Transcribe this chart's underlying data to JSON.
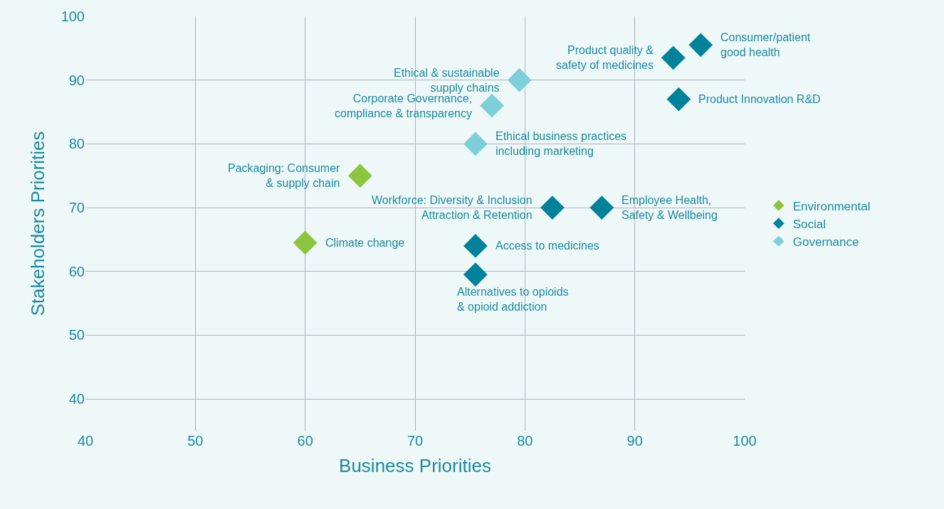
{
  "chart_data": {
    "type": "scatter",
    "xlabel": "Business Priorities",
    "ylabel": "Stakeholders Priorities",
    "xlim": [
      40,
      100
    ],
    "ylim": [
      35,
      100
    ],
    "xticks": [
      40,
      50,
      60,
      70,
      80,
      90,
      100
    ],
    "yticks": [
      40,
      50,
      60,
      70,
      80,
      90,
      100
    ],
    "grid": true,
    "legend": "right",
    "marker": "diamond",
    "series": [
      {
        "name": "Environmental",
        "color": "#8cc63f",
        "x": [
          65,
          60
        ],
        "values": [
          75,
          64.5
        ]
      },
      {
        "name": "Social",
        "color": "#00829b",
        "x": [
          93.5,
          96,
          94,
          82.5,
          87,
          75.5,
          75.5
        ],
        "values": [
          93.5,
          95.5,
          87,
          70,
          70,
          64,
          59.5
        ]
      },
      {
        "name": "Governance",
        "color": "#7dd0da",
        "x": [
          79.5,
          77,
          75.5
        ],
        "values": [
          90,
          86,
          80
        ]
      }
    ],
    "annotations": [
      {
        "text": "Packaging: Consumer\n& supply chain",
        "x": 65,
        "y": 75
      },
      {
        "text": "Climate change",
        "x": 60,
        "y": 64.5
      },
      {
        "text": "Product quality &\nsafety of medicines",
        "x": 93.5,
        "y": 93.5
      },
      {
        "text": "Consumer/patient\ngood health",
        "x": 96,
        "y": 95.5
      },
      {
        "text": "Product Innovation R&D",
        "x": 94,
        "y": 87
      },
      {
        "text": "Workforce: Diversity & Inclusion\nAttraction & Retention",
        "x": 82.5,
        "y": 70
      },
      {
        "text": "Employee Health,\nSafety & Wellbeing",
        "x": 87,
        "y": 70
      },
      {
        "text": "Access to medicines",
        "x": 75.5,
        "y": 64
      },
      {
        "text": "Alternatives to opioids\n& opioid addiction",
        "x": 75.5,
        "y": 59.5
      },
      {
        "text": "Ethical & sustainable\nsupply chains",
        "x": 79.5,
        "y": 90
      },
      {
        "text": "Corporate Governance,\ncompliance & transparency",
        "x": 77,
        "y": 86
      },
      {
        "text": "Ethical business practices\nincluding marketing",
        "x": 75.5,
        "y": 80
      }
    ]
  }
}
